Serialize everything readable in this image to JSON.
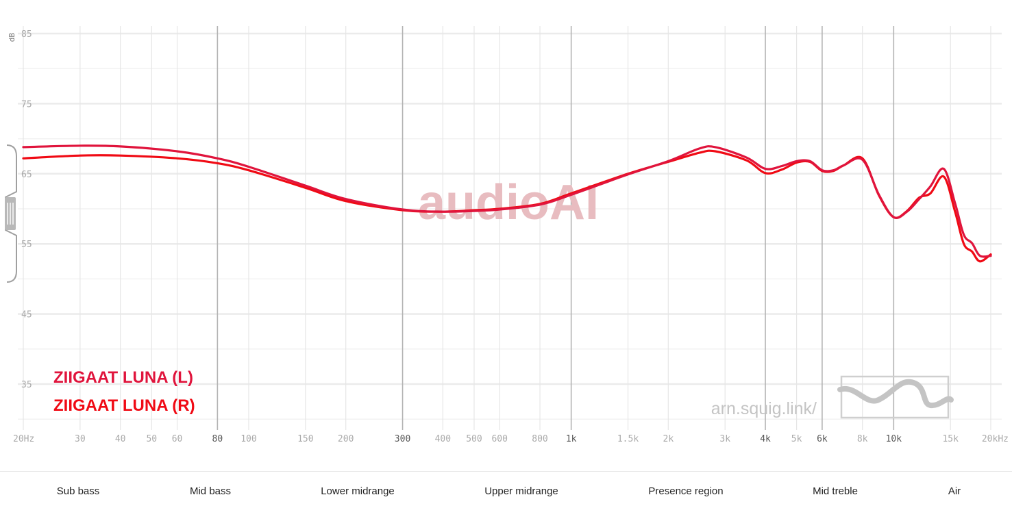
{
  "chart_data": {
    "type": "line",
    "ylabel": "dB",
    "xscale": "log",
    "xlim": [
      20,
      20000
    ],
    "ylim": [
      30,
      86
    ],
    "y_ticks": [
      {
        "value": 35,
        "label": "35"
      },
      {
        "value": 45,
        "label": "45"
      },
      {
        "value": 55,
        "label": "55"
      },
      {
        "value": 65,
        "label": "65"
      },
      {
        "value": 75,
        "label": "75"
      },
      {
        "value": 85,
        "label": "85"
      }
    ],
    "x_ticks": [
      {
        "value": 20,
        "label": "20Hz",
        "major": false
      },
      {
        "value": 30,
        "label": "30",
        "major": false
      },
      {
        "value": 40,
        "label": "40",
        "major": false
      },
      {
        "value": 50,
        "label": "50",
        "major": false
      },
      {
        "value": 60,
        "label": "60",
        "major": false
      },
      {
        "value": 80,
        "label": "80",
        "major": true
      },
      {
        "value": 100,
        "label": "100",
        "major": false
      },
      {
        "value": 150,
        "label": "150",
        "major": false
      },
      {
        "value": 200,
        "label": "200",
        "major": false
      },
      {
        "value": 300,
        "label": "300",
        "major": true
      },
      {
        "value": 400,
        "label": "400",
        "major": false
      },
      {
        "value": 500,
        "label": "500",
        "major": false
      },
      {
        "value": 600,
        "label": "600",
        "major": false
      },
      {
        "value": 800,
        "label": "800",
        "major": false
      },
      {
        "value": 1000,
        "label": "1k",
        "major": true
      },
      {
        "value": 1500,
        "label": "1.5k",
        "major": false
      },
      {
        "value": 2000,
        "label": "2k",
        "major": false
      },
      {
        "value": 3000,
        "label": "3k",
        "major": false
      },
      {
        "value": 4000,
        "label": "4k",
        "major": true
      },
      {
        "value": 5000,
        "label": "5k",
        "major": false
      },
      {
        "value": 6000,
        "label": "6k",
        "major": true
      },
      {
        "value": 8000,
        "label": "8k",
        "major": false
      },
      {
        "value": 10000,
        "label": "10k",
        "major": true
      },
      {
        "value": 15000,
        "label": "15k",
        "major": false
      },
      {
        "value": 20000,
        "label": "20kHz",
        "major": false
      }
    ],
    "series": [
      {
        "name": "ZIIGAAT LUNA (L)",
        "color": "#e0143c",
        "points": [
          [
            20,
            68.8
          ],
          [
            30,
            69.0
          ],
          [
            40,
            68.9
          ],
          [
            60,
            68.2
          ],
          [
            80,
            67.2
          ],
          [
            100,
            66.0
          ],
          [
            150,
            63.3
          ],
          [
            200,
            61.4
          ],
          [
            300,
            59.9
          ],
          [
            400,
            59.6
          ],
          [
            500,
            59.7
          ],
          [
            600,
            59.9
          ],
          [
            800,
            60.6
          ],
          [
            1000,
            62.0
          ],
          [
            1500,
            64.9
          ],
          [
            2000,
            66.8
          ],
          [
            2500,
            68.6
          ],
          [
            2800,
            68.8
          ],
          [
            3500,
            67.3
          ],
          [
            4000,
            65.7
          ],
          [
            4500,
            66.1
          ],
          [
            5000,
            66.8
          ],
          [
            5500,
            66.8
          ],
          [
            6000,
            65.5
          ],
          [
            6500,
            65.5
          ],
          [
            7000,
            66.2
          ],
          [
            8000,
            67.0
          ],
          [
            9000,
            62.0
          ],
          [
            10000,
            58.8
          ],
          [
            11000,
            59.6
          ],
          [
            12000,
            61.4
          ],
          [
            13000,
            63.2
          ],
          [
            14300,
            65.7
          ],
          [
            15500,
            60.8
          ],
          [
            16500,
            56.3
          ],
          [
            17500,
            55.1
          ],
          [
            18500,
            53.3
          ],
          [
            20000,
            53.3
          ]
        ]
      },
      {
        "name": "ZIIGAAT LUNA (R)",
        "color": "#f00a14",
        "points": [
          [
            20,
            67.2
          ],
          [
            30,
            67.6
          ],
          [
            40,
            67.6
          ],
          [
            60,
            67.2
          ],
          [
            80,
            66.5
          ],
          [
            100,
            65.5
          ],
          [
            150,
            63.0
          ],
          [
            200,
            61.1
          ],
          [
            300,
            59.8
          ],
          [
            400,
            59.6
          ],
          [
            500,
            59.8
          ],
          [
            600,
            60.0
          ],
          [
            800,
            60.7
          ],
          [
            1000,
            62.2
          ],
          [
            1500,
            65.0
          ],
          [
            2000,
            66.7
          ],
          [
            2500,
            68.0
          ],
          [
            2800,
            68.2
          ],
          [
            3500,
            66.9
          ],
          [
            4000,
            65.1
          ],
          [
            4500,
            65.6
          ],
          [
            5000,
            66.6
          ],
          [
            5500,
            66.7
          ],
          [
            6000,
            65.4
          ],
          [
            6500,
            65.4
          ],
          [
            7000,
            66.2
          ],
          [
            8000,
            67.2
          ],
          [
            9000,
            61.9
          ],
          [
            10000,
            58.8
          ],
          [
            11000,
            59.7
          ],
          [
            12000,
            61.6
          ],
          [
            13000,
            62.2
          ],
          [
            14300,
            64.6
          ],
          [
            15500,
            59.6
          ],
          [
            16500,
            55.0
          ],
          [
            17500,
            53.9
          ],
          [
            18500,
            52.5
          ],
          [
            20000,
            53.5
          ]
        ]
      }
    ],
    "legend_placement": "bottom-left",
    "grid": true
  },
  "watermark": "audioAI",
  "site_url": "arn.squig.link/",
  "regions": [
    {
      "label": "Sub bass",
      "center_hz": 30
    },
    {
      "label": "Mid bass",
      "center_hz": 90
    },
    {
      "label": "Lower midrange",
      "center_hz": 280
    },
    {
      "label": "Upper midrange",
      "center_hz": 900
    },
    {
      "label": "Presence region",
      "center_hz": 2900
    },
    {
      "label": "Mid treble",
      "center_hz": 7000
    },
    {
      "label": "Air",
      "center_hz": 14000
    }
  ]
}
